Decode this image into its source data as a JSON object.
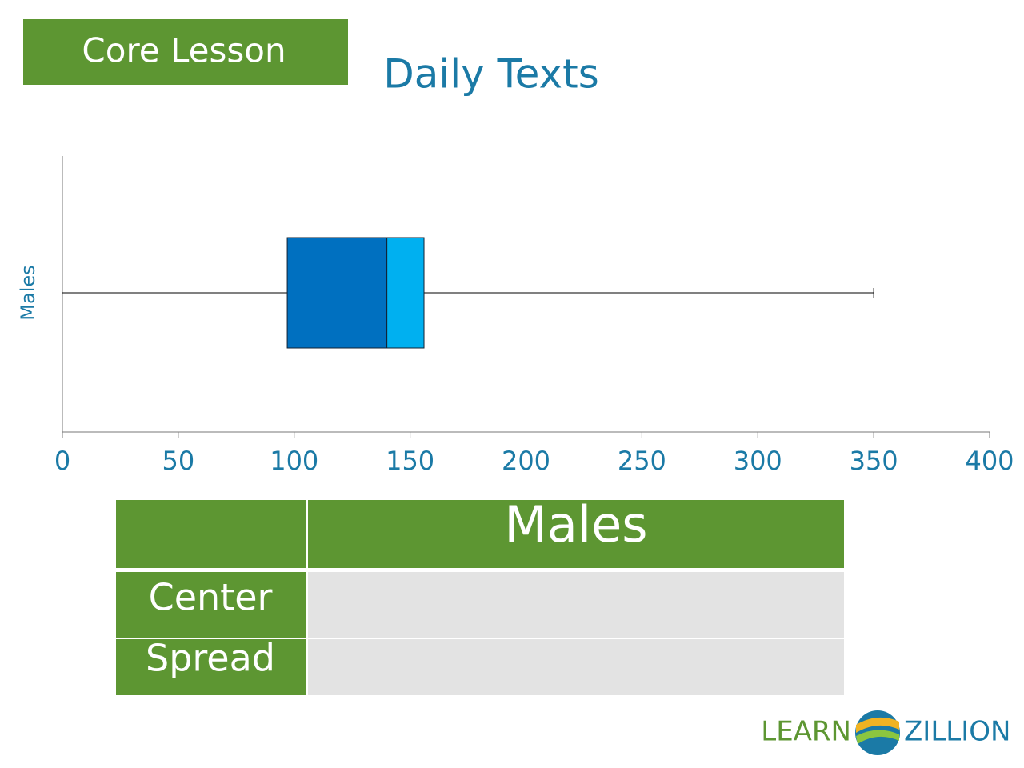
{
  "badge": "Core Lesson",
  "chart_data": {
    "type": "box",
    "title": "Daily Texts",
    "boxes": [
      {
        "name": "Males",
        "min": 0,
        "q1": 97,
        "median": 140,
        "q3": 156,
        "max": 350
      }
    ],
    "box_colors": [
      "#0070c0",
      "#00b0f0"
    ],
    "xlim": [
      0,
      400
    ],
    "xticks": [
      0,
      50,
      100,
      150,
      200,
      250,
      300,
      350,
      400
    ]
  },
  "table": {
    "header": "Males",
    "rows": [
      "Center",
      "Spread"
    ]
  },
  "logo": {
    "left": "LEARN",
    "right": "ZILLION"
  }
}
